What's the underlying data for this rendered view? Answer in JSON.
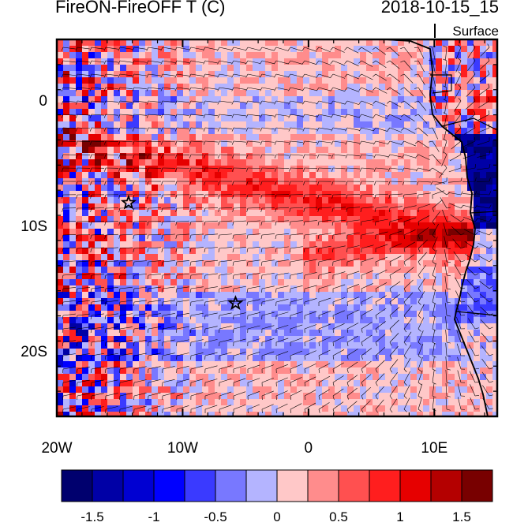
{
  "title": {
    "left": "FireON-FireOFF T (C)",
    "right": "2018-10-15_15"
  },
  "level": "Surface",
  "map": {
    "lon_range": [
      -20,
      15
    ],
    "lat_range": [
      -25,
      5
    ],
    "x_ticks": [
      {
        "value": -20,
        "label": "20W"
      },
      {
        "value": -10,
        "label": "10W"
      },
      {
        "value": 0,
        "label": "0"
      },
      {
        "value": 10,
        "label": "10E"
      }
    ],
    "y_ticks": [
      {
        "value": 0,
        "label": "0"
      },
      {
        "value": -10,
        "label": "10S"
      },
      {
        "value": -20,
        "label": "20S"
      }
    ],
    "markers": [
      {
        "lon": -14.3,
        "lat": -8.0,
        "symbol": "star"
      },
      {
        "lon": -5.8,
        "lat": -16.0,
        "symbol": "star"
      }
    ]
  },
  "colorbar": {
    "colors": [
      "#00006e",
      "#0000a6",
      "#0000d2",
      "#0000ff",
      "#3a3aff",
      "#7878ff",
      "#b4b4ff",
      "#ffc8c8",
      "#ff8c8c",
      "#ff5050",
      "#ff1e1e",
      "#e60000",
      "#b40000",
      "#780000"
    ],
    "labels": [
      "-1.5",
      "-1",
      "-0.5",
      "0",
      "0.5",
      "1",
      "1.5"
    ]
  }
}
